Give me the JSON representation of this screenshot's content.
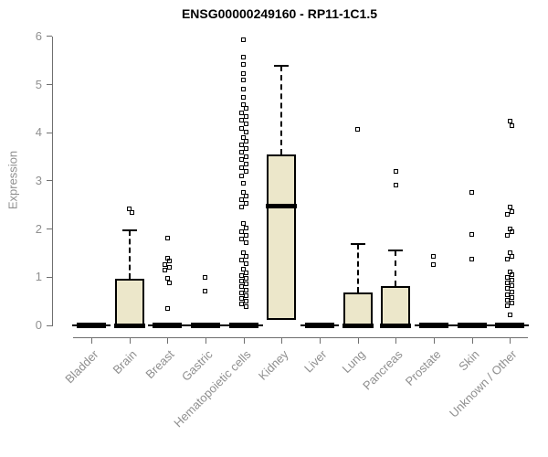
{
  "chart_data": {
    "type": "boxplot",
    "title": "ENSG00000249160 - RP11-1C1.5",
    "ylabel": "Expression",
    "xlabel": "",
    "ylim": [
      0,
      6
    ],
    "yticks": [
      0,
      1,
      2,
      3,
      4,
      5,
      6
    ],
    "grid": false,
    "legend": "none",
    "box_fill_color": "#ece7ca",
    "box_border_color": "#000000",
    "axis_color": "#6f6f6f",
    "label_color": "#8f8f8f",
    "categories": [
      "Bladder",
      "Brain",
      "Breast",
      "Gastric",
      "Hematopoietic cells",
      "Kidney",
      "Liver",
      "Lung",
      "Pancreas",
      "Prostate",
      "Skin",
      "Unknown / Other"
    ],
    "boxes": [
      {
        "category": "Bladder",
        "q1": 0,
        "median": 0,
        "q3": 0,
        "whisker_low": 0,
        "whisker_high": 0,
        "outliers": []
      },
      {
        "category": "Brain",
        "q1": 0,
        "median": 0,
        "q3": 0.97,
        "whisker_low": 0,
        "whisker_high": 1.97,
        "outliers": [
          2.42,
          2.34
        ]
      },
      {
        "category": "Breast",
        "q1": 0,
        "median": 0,
        "q3": 0,
        "whisker_low": 0,
        "whisker_high": 0,
        "outliers": [
          1.82,
          1.4,
          1.34,
          1.27,
          1.21,
          1.15,
          0.97,
          0.88,
          0.36
        ]
      },
      {
        "category": "Gastric",
        "q1": 0,
        "median": 0,
        "q3": 0,
        "whisker_low": 0,
        "whisker_high": 0,
        "outliers": [
          1.0,
          0.72
        ]
      },
      {
        "category": "Hematopoietic cells",
        "q1": 0,
        "median": 0,
        "q3": 0,
        "whisker_low": 0,
        "whisker_high": 0,
        "outliers": [
          5.94,
          5.58,
          5.43,
          5.24,
          5.09,
          4.9,
          4.73,
          4.58,
          4.5,
          4.42,
          4.34,
          4.26,
          4.18,
          4.1,
          4.02,
          3.91,
          3.83,
          3.75,
          3.67,
          3.59,
          3.51,
          3.44,
          3.36,
          3.28,
          3.2,
          3.11,
          2.96,
          2.77,
          2.69,
          2.61,
          2.53,
          2.45,
          2.11,
          2.03,
          1.95,
          1.87,
          1.79,
          1.71,
          1.5,
          1.43,
          1.36,
          1.29,
          1.16,
          1.1,
          1.04,
          0.98,
          0.92,
          0.86,
          0.8,
          0.74,
          0.68,
          0.62,
          0.56,
          0.5,
          0.44,
          0.38
        ]
      },
      {
        "category": "Kidney",
        "q1": 0.12,
        "median": 2.47,
        "q3": 3.55,
        "whisker_low": 0.12,
        "whisker_high": 5.4,
        "outliers": []
      },
      {
        "category": "Liver",
        "q1": 0,
        "median": 0,
        "q3": 0,
        "whisker_low": 0,
        "whisker_high": 0,
        "outliers": []
      },
      {
        "category": "Lung",
        "q1": 0,
        "median": 0,
        "q3": 0.68,
        "whisker_low": 0,
        "whisker_high": 1.69,
        "outliers": [
          4.08
        ]
      },
      {
        "category": "Pancreas",
        "q1": 0,
        "median": 0,
        "q3": 0.82,
        "whisker_low": 0,
        "whisker_high": 1.55,
        "outliers": [
          3.19,
          2.92
        ]
      },
      {
        "category": "Prostate",
        "q1": 0,
        "median": 0,
        "q3": 0,
        "whisker_low": 0,
        "whisker_high": 0,
        "outliers": [
          1.44,
          1.27
        ]
      },
      {
        "category": "Skin",
        "q1": 0,
        "median": 0,
        "q3": 0,
        "whisker_low": 0,
        "whisker_high": 0,
        "outliers": [
          2.77,
          1.88,
          1.38
        ]
      },
      {
        "category": "Unknown / Other",
        "q1": 0,
        "median": 0,
        "q3": 0,
        "whisker_low": 0,
        "whisker_high": 0,
        "outliers": [
          4.25,
          4.15,
          2.45,
          2.37,
          2.3,
          2.01,
          1.94,
          1.87,
          1.5,
          1.44,
          1.38,
          1.12,
          1.06,
          1.0,
          0.94,
          0.88,
          0.82,
          0.76,
          0.7,
          0.64,
          0.58,
          0.52,
          0.46,
          0.4,
          0.21
        ]
      }
    ]
  }
}
